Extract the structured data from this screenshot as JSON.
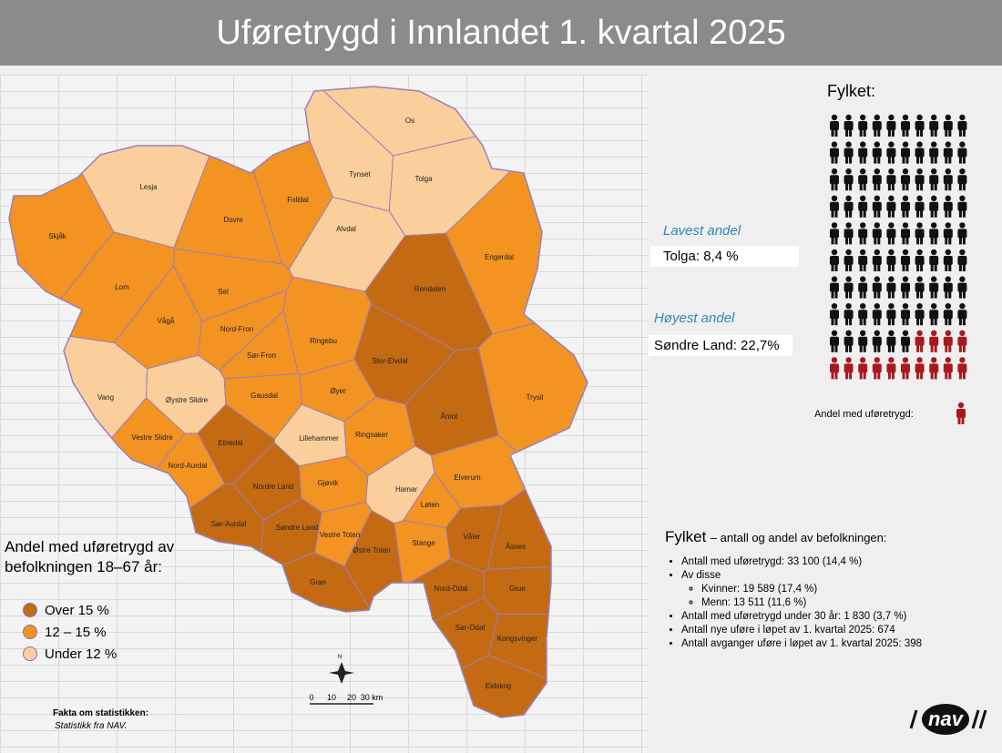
{
  "header": {
    "title": "Uføretrygd i Innlandet 1. kvartal 2025"
  },
  "map": {
    "municipalities": [
      {
        "name": "Os",
        "color": "#fbcf9c"
      },
      {
        "name": "Tynset",
        "color": "#fbcf9c"
      },
      {
        "name": "Tolga",
        "color": "#fbcf9c"
      },
      {
        "name": "Lesja",
        "color": "#fbcf9c"
      },
      {
        "name": "Folldal",
        "color": "#f39322"
      },
      {
        "name": "Dovre",
        "color": "#f39322"
      },
      {
        "name": "Alvdal",
        "color": "#fbcf9c"
      },
      {
        "name": "Skjåk",
        "color": "#f39322"
      },
      {
        "name": "Engerdal",
        "color": "#f39322"
      },
      {
        "name": "Lom",
        "color": "#f39322"
      },
      {
        "name": "Rendalen",
        "color": "#c46a12"
      },
      {
        "name": "Sel",
        "color": "#f39322"
      },
      {
        "name": "Vågå",
        "color": "#f39322"
      },
      {
        "name": "Nord-Fron",
        "color": "#f39322"
      },
      {
        "name": "Ringebu",
        "color": "#f39322"
      },
      {
        "name": "Sør-Fron",
        "color": "#f39322"
      },
      {
        "name": "Stor-Elvdal",
        "color": "#c46a12"
      },
      {
        "name": "Trysil",
        "color": "#f39322"
      },
      {
        "name": "Vang",
        "color": "#fbcf9c"
      },
      {
        "name": "Øystre Slidre",
        "color": "#fbcf9c"
      },
      {
        "name": "Gausdal",
        "color": "#f39322"
      },
      {
        "name": "Øyer",
        "color": "#f39322"
      },
      {
        "name": "Åmot",
        "color": "#c46a12"
      },
      {
        "name": "Lillehammer",
        "color": "#fbcf9c"
      },
      {
        "name": "Vestre Slidre",
        "color": "#f39322"
      },
      {
        "name": "Etnedal",
        "color": "#c46a12"
      },
      {
        "name": "Ringsaker",
        "color": "#f39322"
      },
      {
        "name": "Nord-Aurdal",
        "color": "#f39322"
      },
      {
        "name": "Nordre Land",
        "color": "#c46a12"
      },
      {
        "name": "Gjøvik",
        "color": "#f39322"
      },
      {
        "name": "Hamar",
        "color": "#fbcf9c"
      },
      {
        "name": "Løten",
        "color": "#f39322"
      },
      {
        "name": "Elverum",
        "color": "#f39322"
      },
      {
        "name": "Sør-Aurdal",
        "color": "#c46a12"
      },
      {
        "name": "Søndre Land",
        "color": "#c46a12"
      },
      {
        "name": "Vestre Toten",
        "color": "#f39322"
      },
      {
        "name": "Våler",
        "color": "#c46a12"
      },
      {
        "name": "Stange",
        "color": "#f39322"
      },
      {
        "name": "Østre Toten",
        "color": "#c46a12"
      },
      {
        "name": "Åsnes",
        "color": "#c46a12"
      },
      {
        "name": "Gran",
        "color": "#c46a12"
      },
      {
        "name": "Nord-Odal",
        "color": "#c46a12"
      },
      {
        "name": "Grue",
        "color": "#c46a12"
      },
      {
        "name": "Sør-Odal",
        "color": "#c46a12"
      },
      {
        "name": "Kongsvinger",
        "color": "#c46a12"
      },
      {
        "name": "Eidskog",
        "color": "#c46a12"
      }
    ]
  },
  "legend": {
    "title": [
      "Andel med uføretrygd av",
      "befolkningen 18–67 år:"
    ],
    "items": [
      {
        "label": "Over 15 %",
        "color": "#c46a12"
      },
      {
        "label": "12 – 15 %",
        "color": "#f39322"
      },
      {
        "label": "Under 12 %",
        "color": "#fbcf9c"
      }
    ]
  },
  "compass": "N",
  "scale_bar": {
    "labels": [
      "0",
      "10",
      "20",
      "30 km"
    ]
  },
  "footnote": {
    "title": "Fakta om statistikken:",
    "text": "Statistikk fra NAV."
  },
  "county_panel": {
    "title": "Fylket:",
    "pictogram": {
      "icons": 100,
      "highlighted": 14,
      "color": "#111111",
      "highlight_color": "#a8191e"
    },
    "lowest": {
      "label": "Lavest andel",
      "value": "Tolga: 8,4 %"
    },
    "highest": {
      "label": "Høyest andel",
      "value": "Søndre Land: 22,7%"
    },
    "pictogram_legend": "Andel med uføretrygd:"
  },
  "summary": {
    "title": "Fylket",
    "subtitle": "– antall og andel av befolkningen:",
    "items": [
      "Antall med uføretrygd: 33 100  (14,4 %)",
      "Av disse"
    ],
    "subitems": [
      "Kvinner: 19 589 (17,4 %)",
      "Menn: 13 511 (11,6 %)"
    ],
    "items_after": [
      "Antall med uføretrygd under 30 år: 1 830 (3,7 %)",
      "Antall nye uføre i løpet av 1. kvartal 2025: 674",
      "Antall avganger uføre i løpet av 1. kvartal 2025: 398"
    ]
  },
  "logo": "nav"
}
